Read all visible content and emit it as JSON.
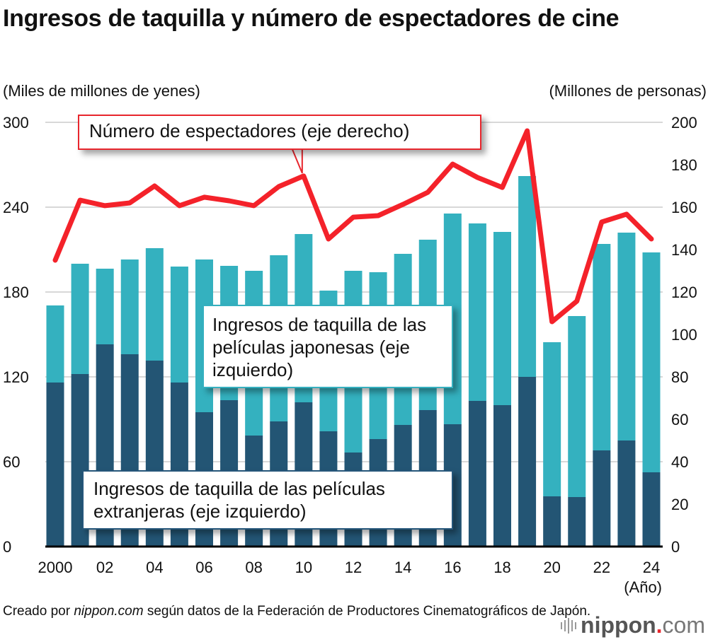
{
  "title": "Ingresos de taquilla y número de espectadores de cine",
  "left_unit": "(Miles de millones de yenes)",
  "right_unit": "(Millones de personas)",
  "year_unit": "(Año)",
  "callouts": {
    "audience": "Número de espectadores (eje derecho)",
    "japanese": "Ingresos de taquilla de las películas japonesas (eje izquierdo)",
    "foreign": "Ingresos de taquilla de las películas extranjeras (eje izquierdo)"
  },
  "credit": {
    "prefix": "Creado por ",
    "source_name": "nippon.com",
    "suffix": " según datos de la Federación de Productores Cinematográficos de Japón."
  },
  "logo": {
    "name": "nippon",
    "dot": ".",
    "tld": "com"
  },
  "colors": {
    "japanese": "#34b1bf",
    "foreign": "#235574",
    "audience": "#f4222a",
    "grid": "#cccccc"
  },
  "chart_data": {
    "type": "bar",
    "stacked": true,
    "title": "Ingresos de taquilla y número de espectadores de cine",
    "xlabel": "(Año)",
    "ylabel": "(Miles de millones de yenes)",
    "y2label": "(Millones de personas)",
    "ylim": [
      0,
      300
    ],
    "y2lim": [
      0,
      200
    ],
    "yticks": [
      "0",
      "60",
      "120",
      "180",
      "240",
      "300"
    ],
    "y2ticks": [
      "0",
      "20",
      "40",
      "60",
      "80",
      "100",
      "120",
      "140",
      "160",
      "180",
      "200"
    ],
    "grid": true,
    "categories": [
      "2000",
      "2001",
      "2002",
      "2003",
      "2004",
      "2005",
      "2006",
      "2007",
      "2008",
      "2009",
      "2010",
      "2011",
      "2012",
      "2013",
      "2014",
      "2015",
      "2016",
      "2017",
      "2018",
      "2019",
      "2020",
      "2021",
      "2022",
      "2023",
      "2024"
    ],
    "xtick_labels": [
      "2000",
      "",
      "02",
      "",
      "04",
      "",
      "06",
      "",
      "08",
      "",
      "10",
      "",
      "12",
      "",
      "14",
      "",
      "16",
      "",
      "18",
      "",
      "20",
      "",
      "22",
      "",
      "24"
    ],
    "series": [
      {
        "name": "Ingresos de taquilla de las películas extranjeras (eje izquierdo)",
        "axis": "left",
        "kind": "bar",
        "values": [
          116,
          122,
          143,
          136,
          131.5,
          116,
          95,
          103.5,
          78.5,
          88.5,
          102,
          81.5,
          66.5,
          76,
          86,
          96.5,
          86.5,
          103,
          100,
          120,
          35.5,
          35,
          68,
          75,
          52.5
        ]
      },
      {
        "name": "Ingresos de taquilla de las películas japonesas (eje izquierdo)",
        "axis": "left",
        "kind": "bar",
        "values": [
          54.5,
          78,
          53.5,
          67,
          79.5,
          82,
          108,
          95,
          116.5,
          117.5,
          119,
          99.5,
          128.5,
          118,
          121,
          120.5,
          149,
          125.5,
          122.5,
          142,
          109,
          128,
          146,
          147,
          155.5
        ]
      },
      {
        "name": "Número de espectadores (eje derecho)",
        "axis": "right",
        "kind": "line",
        "values": [
          135,
          163.3,
          160.7,
          162,
          170,
          160.7,
          164.7,
          163,
          160.7,
          169.7,
          174.7,
          145,
          155.3,
          156,
          161.3,
          167,
          180.3,
          174,
          169.3,
          196,
          106,
          115.7,
          153,
          156.7,
          145
        ]
      }
    ]
  }
}
